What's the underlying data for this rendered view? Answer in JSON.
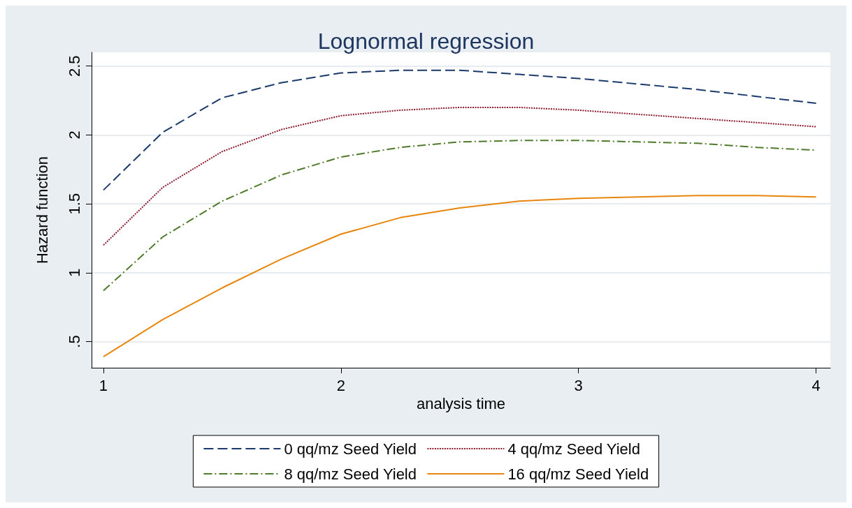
{
  "chart_data": {
    "type": "line",
    "title": "Lognormal regression",
    "xlabel": "analysis time",
    "ylabel": "Hazard function",
    "x": [
      1,
      1.25,
      1.5,
      1.75,
      2,
      2.25,
      2.5,
      2.75,
      3,
      3.25,
      3.5,
      3.75,
      4
    ],
    "series": [
      {
        "name": "0 qq/mz Seed Yield",
        "color": "#1a3a6b",
        "line_style": "dashed",
        "values": [
          1.6,
          2.02,
          2.27,
          2.38,
          2.45,
          2.47,
          2.47,
          2.44,
          2.41,
          2.37,
          2.33,
          2.28,
          2.23
        ]
      },
      {
        "name": "4 qq/mz Seed Yield",
        "color": "#8b1a2b",
        "line_style": "dotted",
        "values": [
          1.2,
          1.62,
          1.88,
          2.04,
          2.14,
          2.18,
          2.2,
          2.2,
          2.18,
          2.15,
          2.12,
          2.09,
          2.06
        ]
      },
      {
        "name": "8 qq/mz Seed Yield",
        "color": "#4e7a2a",
        "line_style": "dashdot",
        "values": [
          0.87,
          1.26,
          1.52,
          1.71,
          1.84,
          1.91,
          1.95,
          1.96,
          1.96,
          1.95,
          1.94,
          1.91,
          1.89
        ]
      },
      {
        "name": "16 qq/mz Seed Yield",
        "color": "#e8850c",
        "line_style": "solid",
        "values": [
          0.39,
          0.66,
          0.89,
          1.1,
          1.28,
          1.4,
          1.47,
          1.52,
          1.54,
          1.55,
          1.56,
          1.56,
          1.55
        ]
      }
    ],
    "xlim": [
      0.95,
      4.06
    ],
    "xticks": [
      1,
      2,
      3,
      4
    ],
    "ylim": [
      0.31,
      2.6
    ],
    "yticks": [
      {
        "value": 0.5,
        "label": ".5"
      },
      1,
      1.5,
      2,
      2.5
    ],
    "grid": "y",
    "legend": "bottom",
    "marker": "none"
  }
}
